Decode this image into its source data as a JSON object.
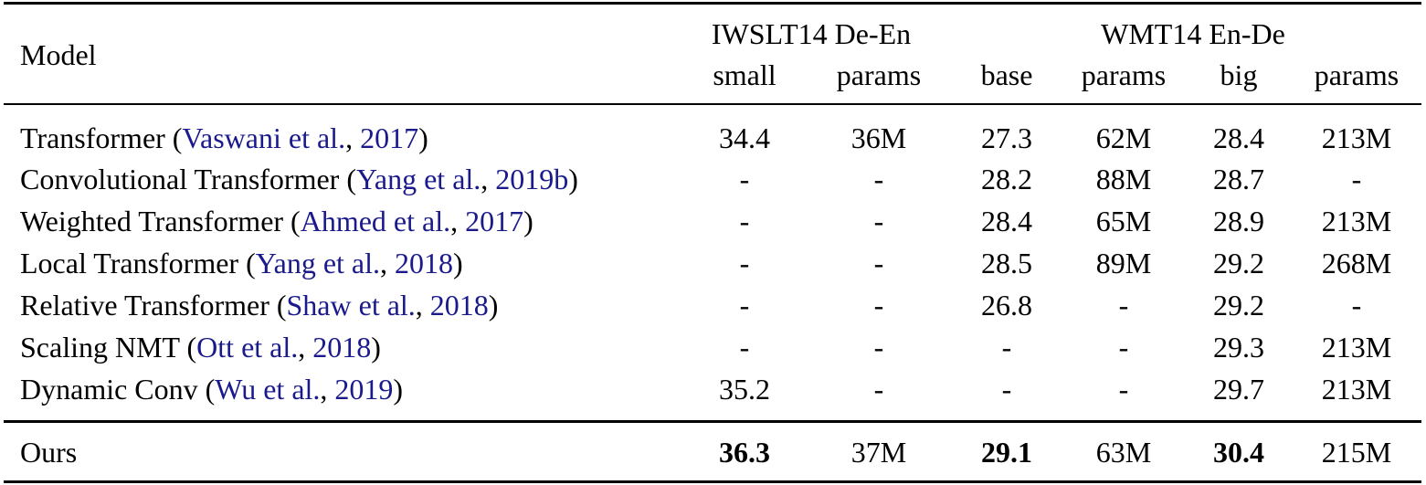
{
  "table": {
    "header": {
      "model_label": "Model",
      "group_iwslt": "IWSLT14 De-En",
      "group_wmt": "WMT14 En-De",
      "columns": [
        "small",
        "params",
        "base",
        "params",
        "big",
        "params"
      ]
    },
    "rows": [
      {
        "model": "Transformer",
        "cite_author": "Vaswani et al.",
        "cite_year": "2017",
        "values": [
          "34.4",
          "36M",
          "27.3",
          "62M",
          "28.4",
          "213M"
        ]
      },
      {
        "model": "Convolutional Transformer",
        "cite_author": "Yang et al.",
        "cite_year": "2019b",
        "values": [
          "-",
          "-",
          "28.2",
          "88M",
          "28.7",
          "-"
        ]
      },
      {
        "model": "Weighted Transformer",
        "cite_author": "Ahmed et al.",
        "cite_year": "2017",
        "values": [
          "-",
          "-",
          "28.4",
          "65M",
          "28.9",
          "213M"
        ]
      },
      {
        "model": "Local Transformer",
        "cite_author": "Yang et al.",
        "cite_year": "2018",
        "values": [
          "-",
          "-",
          "28.5",
          "89M",
          "29.2",
          "268M"
        ]
      },
      {
        "model": "Relative Transformer",
        "cite_author": "Shaw et al.",
        "cite_year": "2018",
        "values": [
          "-",
          "-",
          "26.8",
          "-",
          "29.2",
          "-"
        ]
      },
      {
        "model": "Scaling NMT",
        "cite_author": "Ott et al.",
        "cite_year": "2018",
        "values": [
          "-",
          "-",
          "-",
          "-",
          "29.3",
          "213M"
        ]
      },
      {
        "model": "Dynamic Conv",
        "cite_author": "Wu et al.",
        "cite_year": "2019",
        "values": [
          "35.2",
          "-",
          "-",
          "-",
          "29.7",
          "213M"
        ]
      }
    ],
    "ours": {
      "model": "Ours",
      "values": [
        "36.3",
        "37M",
        "29.1",
        "63M",
        "30.4",
        "215M"
      ]
    }
  }
}
